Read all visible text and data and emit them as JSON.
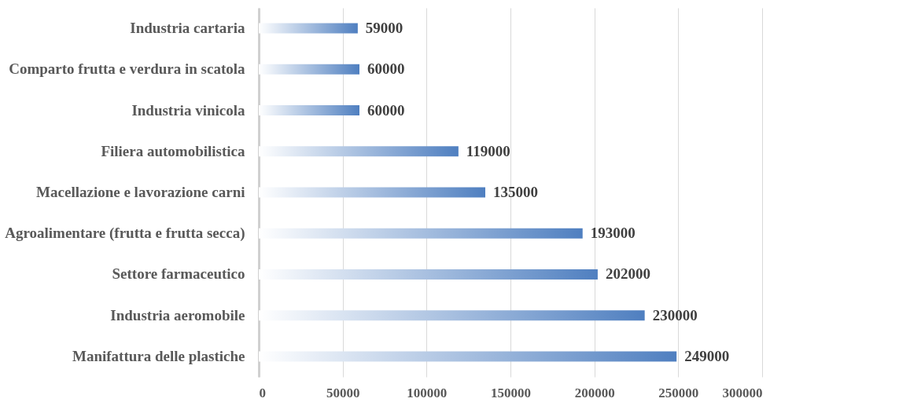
{
  "chart_data": {
    "type": "bar",
    "orientation": "horizontal",
    "categories": [
      "Industria cartaria",
      "Comparto frutta e verdura in scatola",
      "Industria vinicola",
      "Filiera automobilistica",
      "Macellazione e lavorazione carni",
      "Agroalimentare (frutta e frutta secca)",
      "Settore farmaceutico",
      "Industria aeromobile",
      "Manifattura delle plastiche"
    ],
    "values": [
      59000,
      60000,
      60000,
      119000,
      135000,
      193000,
      202000,
      230000,
      249000
    ],
    "color": "#4f7fc0",
    "xlim": [
      0,
      300000
    ],
    "xticks": [
      0,
      50000,
      100000,
      150000,
      200000,
      250000,
      300000
    ],
    "grid": "x",
    "data_labels": true
  }
}
